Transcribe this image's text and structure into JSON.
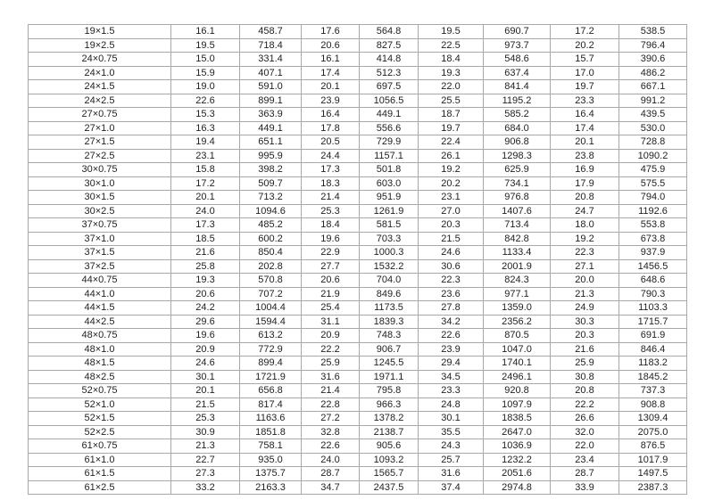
{
  "table": {
    "rows": [
      [
        "19×1.5",
        "16.1",
        "458.7",
        "17.6",
        "564.8",
        "19.5",
        "690.7",
        "17.2",
        "538.5"
      ],
      [
        "19×2.5",
        "19.5",
        "718.4",
        "20.6",
        "827.5",
        "22.5",
        "973.7",
        "20.2",
        "796.4"
      ],
      [
        "24×0.75",
        "15.0",
        "331.4",
        "16.1",
        "414.8",
        "18.4",
        "548.6",
        "15.7",
        "390.6"
      ],
      [
        "24×1.0",
        "15.9",
        "407.1",
        "17.4",
        "512.3",
        "19.3",
        "637.4",
        "17.0",
        "486.2"
      ],
      [
        "24×1.5",
        "19.0",
        "591.0",
        "20.1",
        "697.5",
        "22.0",
        "841.4",
        "19.7",
        "667.1"
      ],
      [
        "24×2.5",
        "22.6",
        "899.1",
        "23.9",
        "1056.5",
        "25.5",
        "1195.2",
        "23.3",
        "991.2"
      ],
      [
        "27×0.75",
        "15.3",
        "363.9",
        "16.4",
        "449.1",
        "18.7",
        "585.2",
        "16.4",
        "439.5"
      ],
      [
        "27×1.0",
        "16.3",
        "449.1",
        "17.8",
        "556.6",
        "19.7",
        "684.0",
        "17.4",
        "530.0"
      ],
      [
        "27×1.5",
        "19.4",
        "651.1",
        "20.5",
        "729.9",
        "22.4",
        "906.8",
        "20.1",
        "728.8"
      ],
      [
        "27×2.5",
        "23.1",
        "995.9",
        "24.4",
        "1157.1",
        "26.1",
        "1298.3",
        "23.8",
        "1090.2"
      ],
      [
        "30×0.75",
        "15.8",
        "398.2",
        "17.3",
        "501.8",
        "19.2",
        "625.9",
        "16.9",
        "475.9"
      ],
      [
        "30×1.0",
        "17.2",
        "509.7",
        "18.3",
        "603.0",
        "20.2",
        "734.1",
        "17.9",
        "575.5"
      ],
      [
        "30×1.5",
        "20.1",
        "713.2",
        "21.4",
        "951.9",
        "23.1",
        "976.8",
        "20.8",
        "794.0"
      ],
      [
        "30×2.5",
        "24.0",
        "1094.6",
        "25.3",
        "1261.9",
        "27.0",
        "1407.6",
        "24.7",
        "1192.6"
      ],
      [
        "37×0.75",
        "17.3",
        "485.2",
        "18.4",
        "581.5",
        "20.3",
        "713.4",
        "18.0",
        "553.8"
      ],
      [
        "37×1.0",
        "18.5",
        "600.2",
        "19.6",
        "703.3",
        "21.5",
        "842.8",
        "19.2",
        "673.8"
      ],
      [
        "37×1.5",
        "21.6",
        "850.4",
        "22.9",
        "1000.3",
        "24.6",
        "1133.4",
        "22.3",
        "937.9"
      ],
      [
        "37×2.5",
        "25.8",
        "202.8",
        "27.7",
        "1532.2",
        "30.6",
        "2001.9",
        "27.1",
        "1456.5"
      ],
      [
        "44×0.75",
        "19.3",
        "570.8",
        "20.6",
        "704.0",
        "22.3",
        "824.3",
        "20.0",
        "648.6"
      ],
      [
        "44×1.0",
        "20.6",
        "707.2",
        "21.9",
        "849.6",
        "23.6",
        "977.1",
        "21.3",
        "790.3"
      ],
      [
        "44×1.5",
        "24.2",
        "1004.4",
        "25.4",
        "1173.5",
        "27.8",
        "1359.0",
        "24.9",
        "1103.3"
      ],
      [
        "44×2.5",
        "29.6",
        "1594.4",
        "31.1",
        "1839.3",
        "34.2",
        "2356.2",
        "30.3",
        "1715.7"
      ],
      [
        "48×0.75",
        "19.6",
        "613.2",
        "20.9",
        "748.3",
        "22.6",
        "870.5",
        "20.3",
        "691.9"
      ],
      [
        "48×1.0",
        "20.9",
        "772.9",
        "22.2",
        "906.7",
        "23.9",
        "1047.0",
        "21.6",
        "846.4"
      ],
      [
        "48×1.5",
        "24.6",
        "899.4",
        "25.9",
        "1245.5",
        "29.4",
        "1740.1",
        "25.9",
        "1183.2"
      ],
      [
        "48×2.5",
        "30.1",
        "1721.9",
        "31.6",
        "1971.1",
        "34.5",
        "2496.1",
        "30.8",
        "1845.2"
      ],
      [
        "52×0.75",
        "20.1",
        "656.8",
        "21.4",
        "795.8",
        "23.3",
        "920.8",
        "20.8",
        "737.3"
      ],
      [
        "52×1.0",
        "21.5",
        "817.4",
        "22.8",
        "966.3",
        "24.8",
        "1097.9",
        "22.2",
        "908.8"
      ],
      [
        "52×1.5",
        "25.3",
        "1163.6",
        "27.2",
        "1378.2",
        "30.1",
        "1838.5",
        "26.6",
        "1309.4"
      ],
      [
        "52×2.5",
        "30.9",
        "1851.8",
        "32.8",
        "2138.7",
        "35.5",
        "2647.0",
        "32.0",
        "2075.0"
      ],
      [
        "61×0.75",
        "21.3",
        "758.1",
        "22.6",
        "905.6",
        "24.3",
        "1036.9",
        "22.0",
        "876.5"
      ],
      [
        "61×1.0",
        "22.7",
        "935.0",
        "24.0",
        "1093.2",
        "25.7",
        "1232.2",
        "23.4",
        "1017.9"
      ],
      [
        "61×1.5",
        "27.3",
        "1375.7",
        "28.7",
        "1565.7",
        "31.6",
        "2051.6",
        "28.7",
        "1497.5"
      ],
      [
        "61×2.5",
        "33.2",
        "2163.3",
        "34.7",
        "2437.5",
        "37.4",
        "2974.8",
        "33.9",
        "2387.3"
      ]
    ]
  }
}
